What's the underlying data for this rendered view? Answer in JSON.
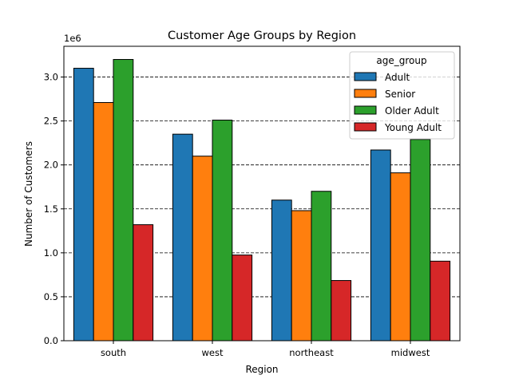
{
  "chart_data": {
    "type": "bar",
    "title": "Customer Age Groups by Region",
    "xlabel": "Region",
    "ylabel": "Number of Customers",
    "y_multiplier_label": "1e6",
    "categories": [
      "south",
      "west",
      "northeast",
      "midwest"
    ],
    "series": [
      {
        "name": "Adult",
        "color": "#1f77b4",
        "values": [
          3100000,
          2350000,
          1600000,
          2170000
        ]
      },
      {
        "name": "Senior",
        "color": "#ff7f0e",
        "values": [
          2710000,
          2100000,
          1480000,
          1910000
        ]
      },
      {
        "name": "Older Adult",
        "color": "#2ca02c",
        "values": [
          3200000,
          2510000,
          1700000,
          2290000
        ]
      },
      {
        "name": "Young Adult",
        "color": "#d62728",
        "values": [
          1320000,
          975000,
          685000,
          905000
        ]
      }
    ],
    "ylim": [
      0,
      3350000
    ],
    "yticks": [
      0,
      500000,
      1000000,
      1500000,
      2000000,
      2500000,
      3000000
    ],
    "ytick_labels": [
      "0.0",
      "0.5",
      "1.0",
      "1.5",
      "2.0",
      "2.5",
      "3.0"
    ],
    "grid": {
      "axis": "y",
      "style": "dashed"
    },
    "legend": {
      "title": "age_group",
      "placement": "top-right"
    }
  }
}
